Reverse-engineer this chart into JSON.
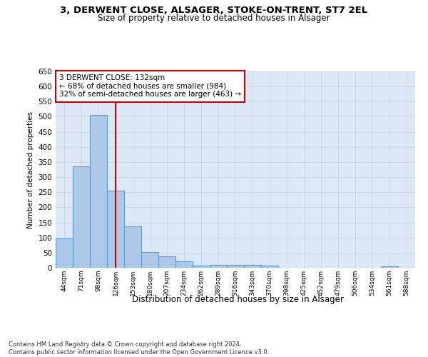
{
  "title_line1": "3, DERWENT CLOSE, ALSAGER, STOKE-ON-TRENT, ST7 2EL",
  "title_line2": "Size of property relative to detached houses in Alsager",
  "xlabel": "Distribution of detached houses by size in Alsager",
  "ylabel": "Number of detached properties",
  "footnote": "Contains HM Land Registry data © Crown copyright and database right 2024.\nContains public sector information licensed under the Open Government Licence v3.0.",
  "bar_labels": [
    "44sqm",
    "71sqm",
    "98sqm",
    "126sqm",
    "153sqm",
    "180sqm",
    "207sqm",
    "234sqm",
    "262sqm",
    "289sqm",
    "316sqm",
    "343sqm",
    "370sqm",
    "398sqm",
    "425sqm",
    "452sqm",
    "479sqm",
    "506sqm",
    "534sqm",
    "561sqm",
    "588sqm"
  ],
  "bar_values": [
    97,
    335,
    505,
    255,
    138,
    53,
    37,
    21,
    8,
    10,
    10,
    10,
    6,
    0,
    0,
    0,
    0,
    0,
    0,
    5,
    0
  ],
  "bar_color": "#aec9e8",
  "bar_edge_color": "#5b9bd5",
  "bar_edge_width": 0.8,
  "red_line_index": 3,
  "red_line_color": "#cc0000",
  "ylim": [
    0,
    650
  ],
  "yticks": [
    0,
    50,
    100,
    150,
    200,
    250,
    300,
    350,
    400,
    450,
    500,
    550,
    600,
    650
  ],
  "annotation_text": "3 DERWENT CLOSE: 132sqm\n← 68% of detached houses are smaller (984)\n32% of semi-detached houses are larger (463) →",
  "annotation_box_color": "#ffffff",
  "annotation_box_edge": "#cc0000",
  "grid_color": "#c8d8e8",
  "plot_bg_color": "#dce8f5"
}
